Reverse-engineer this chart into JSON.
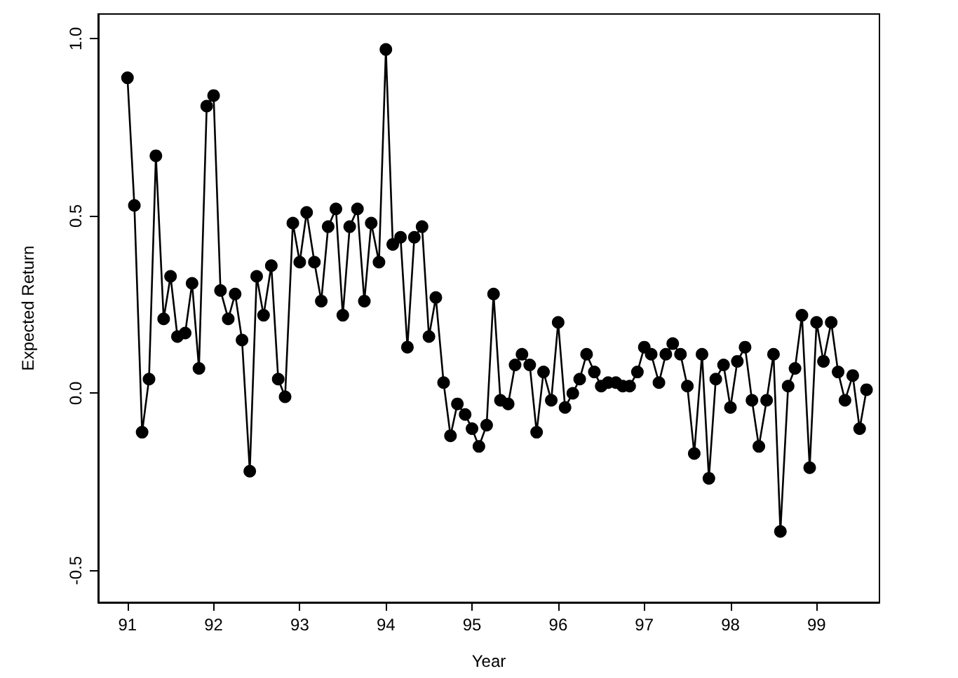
{
  "chart_data": {
    "type": "line",
    "xlabel": "Year",
    "ylabel": "Expected Return",
    "xlim": [
      90.66,
      99.73
    ],
    "ylim": [
      -0.59,
      1.07
    ],
    "xticks": [
      91,
      92,
      93,
      94,
      95,
      96,
      97,
      98,
      99
    ],
    "yticks": [
      {
        "value": -0.5,
        "label": "-0.5"
      },
      {
        "value": 0,
        "label": "0.0"
      },
      {
        "value": 0.5,
        "label": "0.5"
      },
      {
        "value": 1,
        "label": "1.0"
      }
    ],
    "grid": false,
    "legend": false,
    "marker": "circle",
    "line_style": "solid",
    "series": [
      {
        "color": "#000000",
        "x": [
          91,
          91.08,
          91.17,
          91.25,
          91.33,
          91.42,
          91.5,
          91.58,
          91.67,
          91.75,
          91.83,
          91.92,
          92,
          92.08,
          92.17,
          92.25,
          92.33,
          92.42,
          92.5,
          92.58,
          92.67,
          92.75,
          92.83,
          92.92,
          93,
          93.08,
          93.17,
          93.25,
          93.33,
          93.42,
          93.5,
          93.58,
          93.67,
          93.75,
          93.83,
          93.92,
          94,
          94.08,
          94.17,
          94.25,
          94.33,
          94.42,
          94.5,
          94.58,
          94.67,
          94.75,
          94.83,
          94.92,
          95,
          95.08,
          95.17,
          95.25,
          95.33,
          95.42,
          95.5,
          95.58,
          95.67,
          95.75,
          95.83,
          95.92,
          96,
          96.08,
          96.17,
          96.25,
          96.33,
          96.42,
          96.5,
          96.58,
          96.67,
          96.75,
          96.83,
          96.92,
          97,
          97.08,
          97.17,
          97.25,
          97.33,
          97.42,
          97.5,
          97.58,
          97.67,
          97.75,
          97.83,
          97.92,
          98,
          98.08,
          98.17,
          98.25,
          98.33,
          98.42,
          98.5,
          98.58,
          98.67,
          98.75,
          98.83,
          98.92,
          99,
          99.08,
          99.17,
          99.25,
          99.33,
          99.42,
          99.5,
          99.58
        ],
        "values": [
          0.89,
          0.53,
          -0.11,
          0.04,
          0.67,
          0.21,
          0.33,
          0.16,
          0.17,
          0.31,
          0.07,
          0.81,
          0.84,
          0.29,
          0.21,
          0.28,
          0.15,
          -0.22,
          0.33,
          0.22,
          0.36,
          0.04,
          -0.01,
          0.48,
          0.37,
          0.51,
          0.37,
          0.26,
          0.47,
          0.52,
          0.22,
          0.47,
          0.52,
          0.26,
          0.48,
          0.37,
          0.97,
          0.42,
          0.44,
          0.13,
          0.44,
          0.47,
          0.16,
          0.27,
          0.03,
          -0.12,
          -0.03,
          -0.06,
          -0.1,
          -0.15,
          -0.09,
          0.28,
          -0.02,
          -0.03,
          0.08,
          0.11,
          0.08,
          -0.11,
          0.06,
          -0.02,
          0.2,
          -0.04,
          0.0,
          0.04,
          0.11,
          0.06,
          0.02,
          0.03,
          0.03,
          0.02,
          0.02,
          0.06,
          0.13,
          0.11,
          0.03,
          0.11,
          0.14,
          0.11,
          0.02,
          -0.17,
          0.11,
          -0.24,
          0.04,
          0.08,
          -0.04,
          0.09,
          0.13,
          -0.02,
          -0.15,
          -0.02,
          0.11,
          -0.39,
          0.02,
          0.07,
          0.22,
          -0.21,
          0.2,
          0.09,
          0.2,
          0.06,
          -0.02,
          0.05,
          -0.1,
          0.01
        ]
      }
    ]
  }
}
